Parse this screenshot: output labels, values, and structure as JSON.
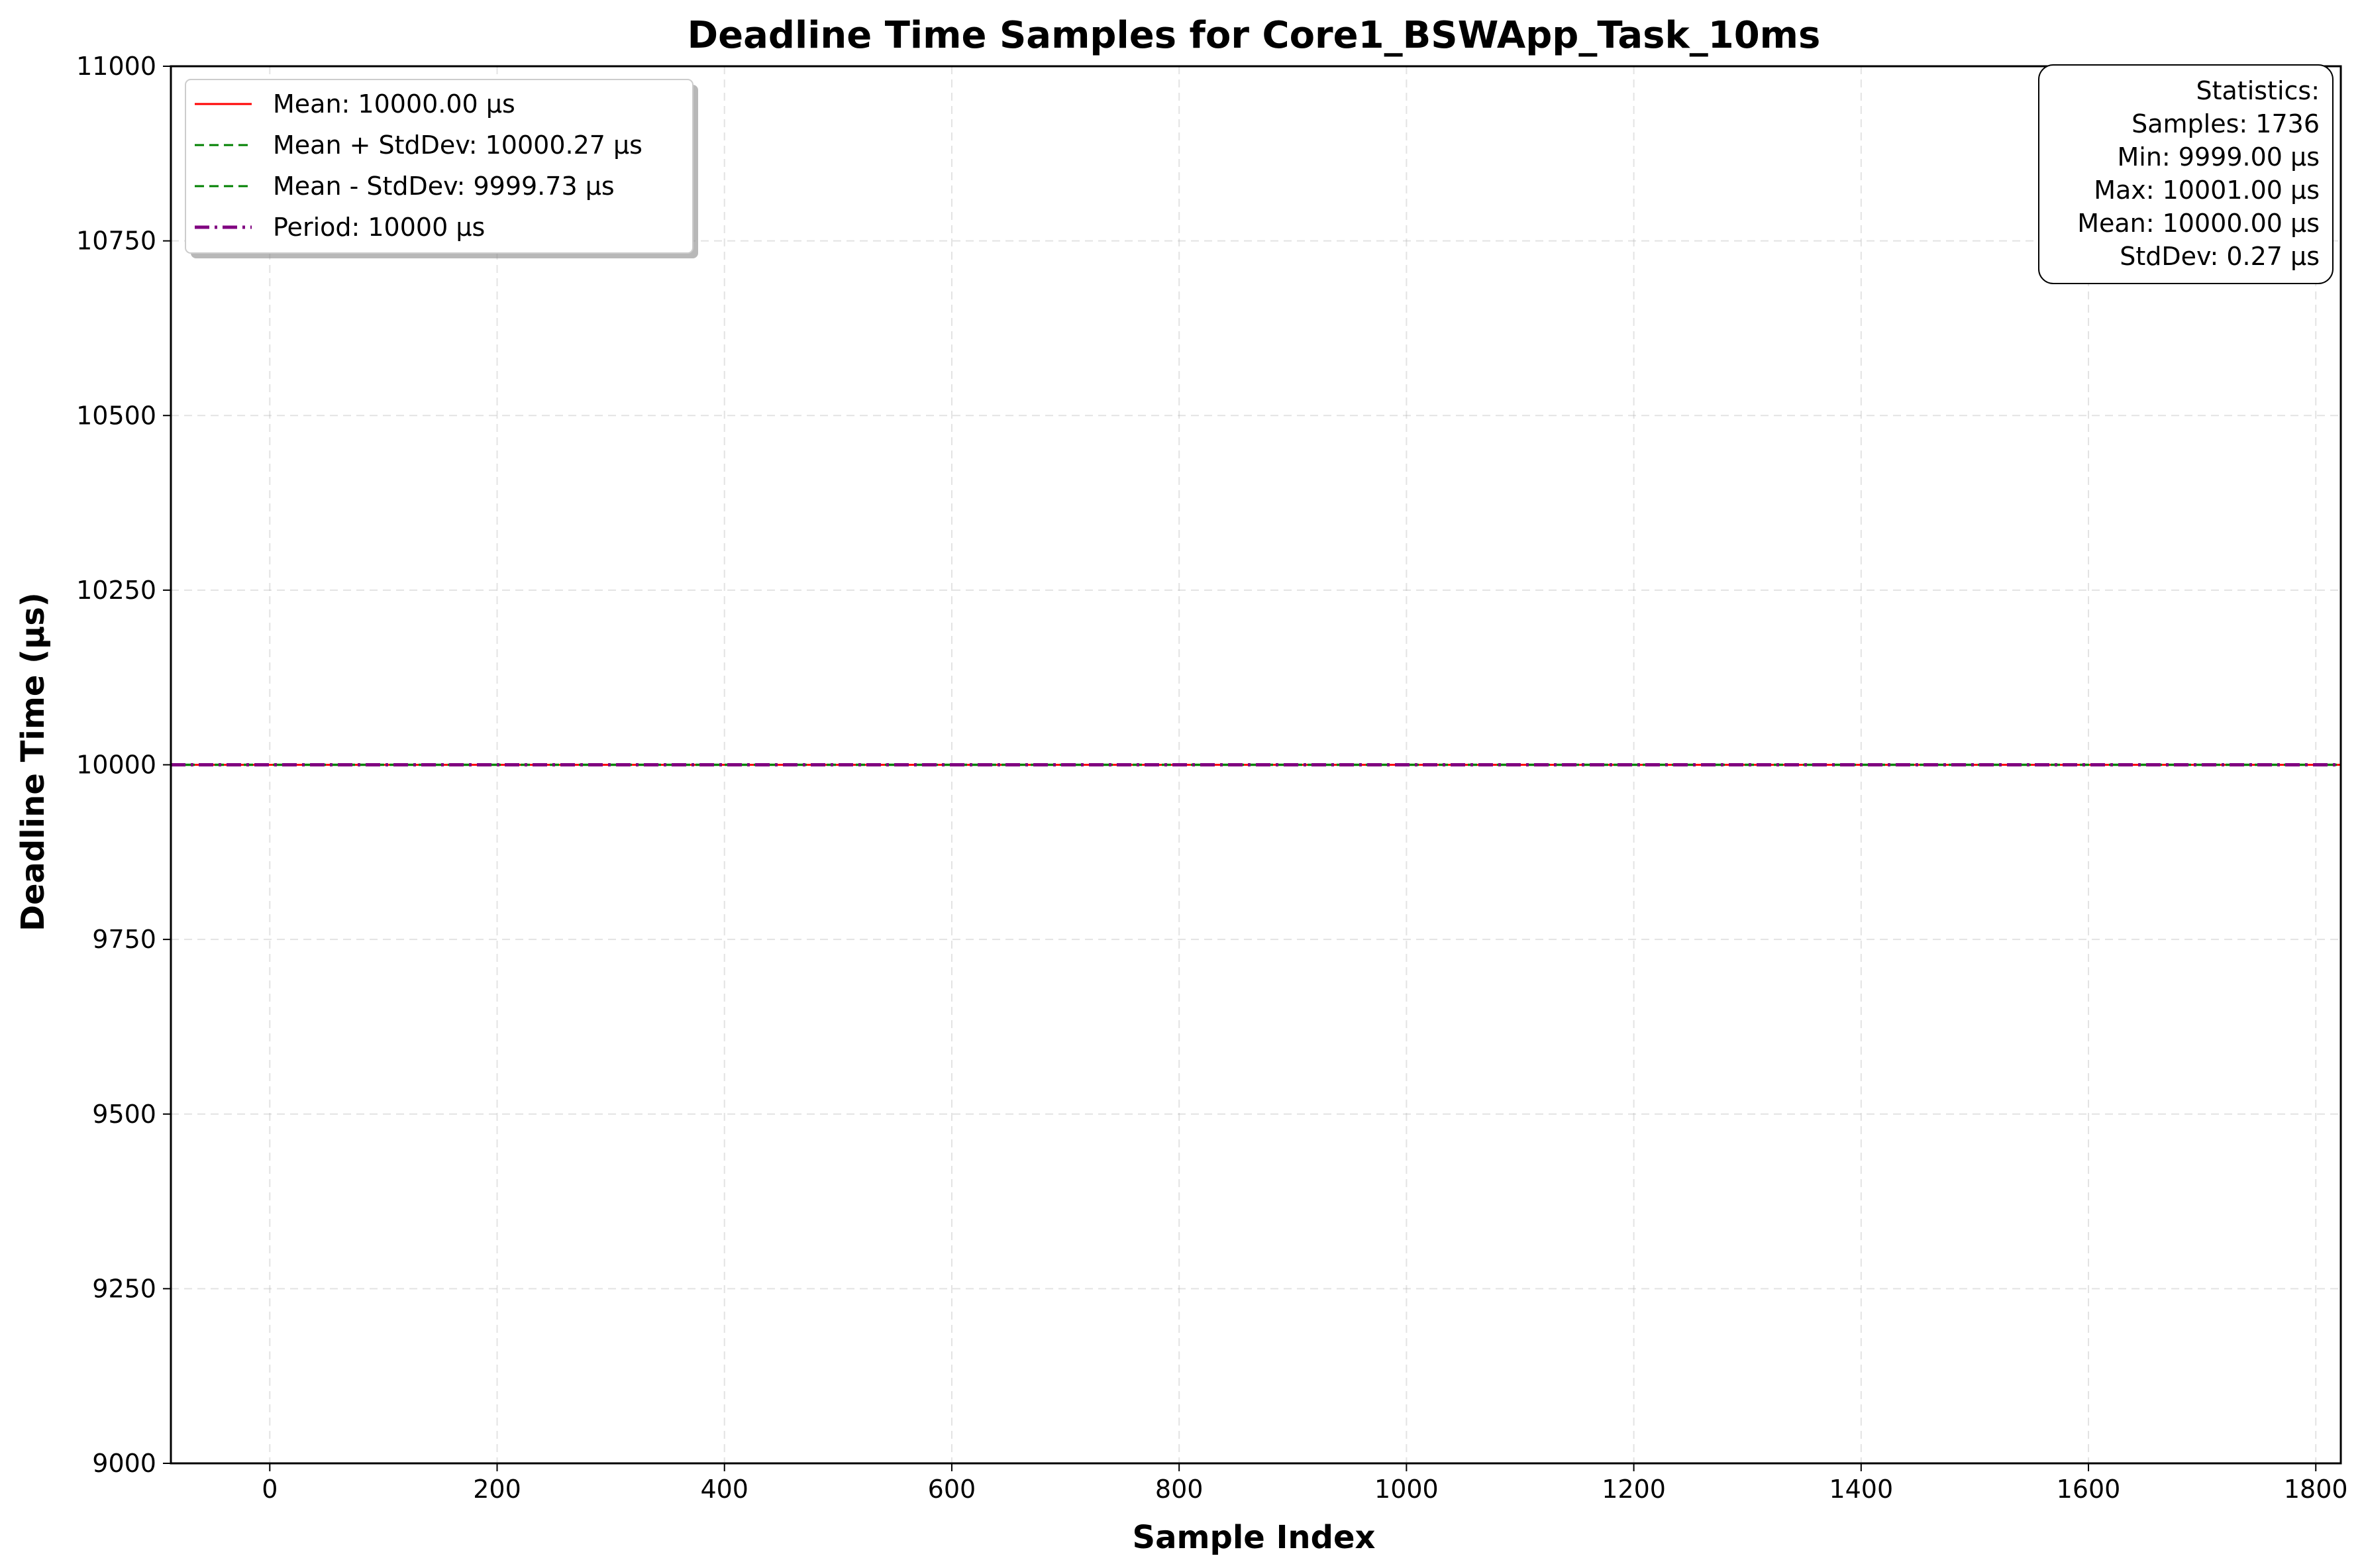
{
  "chart_data": {
    "type": "line",
    "title": "Deadline Time Samples for Core1_BSWApp_Task_10ms",
    "xlabel": "Sample Index",
    "ylabel": "Deadline Time (µs)",
    "xlim": [
      -87,
      1822
    ],
    "ylim": [
      9000,
      11000
    ],
    "x_ticks": [
      0,
      200,
      400,
      600,
      800,
      1000,
      1200,
      1400,
      1600,
      1800
    ],
    "y_ticks": [
      9000,
      9250,
      9500,
      9750,
      10000,
      10250,
      10500,
      10750,
      11000
    ],
    "grid": true,
    "samples": {
      "count": 1736,
      "value_range": [
        9999,
        10001
      ],
      "color": "#1f77b4"
    },
    "series": [
      {
        "name": "Mean: 10000.00 µs",
        "y": 10000.0,
        "color": "#ff0000",
        "style": "solid"
      },
      {
        "name": "Mean + StdDev: 10000.27 µs",
        "y": 10000.27,
        "color": "#008000",
        "style": "dashed"
      },
      {
        "name": "Mean - StdDev: 9999.73 µs",
        "y": 9999.73,
        "color": "#008000",
        "style": "dashed"
      },
      {
        "name": "Period: 10000 µs",
        "y": 10000,
        "color": "#800080",
        "style": "dashdot"
      }
    ],
    "legend_position": "top-left",
    "statistics": {
      "title": "Statistics:",
      "lines": [
        "Samples: 1736",
        "Min: 9999.00 µs",
        "Max: 10001.00 µs",
        "Mean: 10000.00 µs",
        "StdDev: 0.27 µs"
      ],
      "position": "top-right"
    }
  }
}
